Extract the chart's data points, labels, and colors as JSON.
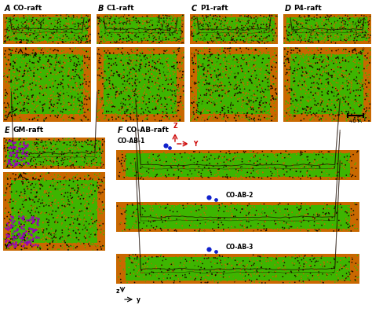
{
  "background_color": "#ffffff",
  "colors": {
    "green": "#3db500",
    "orange": "#c96800",
    "dark": "#1a0a00",
    "purple": "#9900bb",
    "red_arrow": "#cc0000",
    "blue": "#1122cc",
    "black": "#000000",
    "white": "#ffffff",
    "lt_orange": "#e07820"
  },
  "panel_labels": [
    "A",
    "B",
    "C",
    "D",
    "E",
    "F"
  ],
  "panel_subtitles": [
    "CO-raft",
    "C1-raft",
    "P1-raft",
    "P4-raft",
    "GM-raft",
    "CO-AB-raft"
  ],
  "co_ab_labels": [
    "CO-AB-1",
    "CO-AB-2",
    "CO-AB-3"
  ],
  "scale_bar_text": "40 A"
}
